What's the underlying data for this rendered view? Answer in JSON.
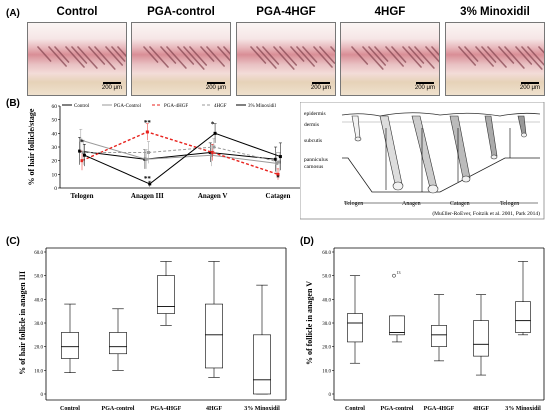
{
  "panelA": {
    "label": "(A)",
    "titles": [
      "Control",
      "PGA-control",
      "PGA-4HGF",
      "4HGF",
      "3% Minoxidil"
    ],
    "scale": "200 μm"
  },
  "panelB": {
    "label": "(B)"
  },
  "panelC": {
    "label": "(C)"
  },
  "panelD": {
    "label": "(D)"
  },
  "diagram": {
    "layers": [
      "epidermis",
      "dermis",
      "subcutis",
      "panniculus\ncarnosus"
    ],
    "phases": [
      "Telogen",
      "Anagen",
      "Catagen",
      "Telogen"
    ],
    "citation": "(Mu£ller-RoEver, Foitzik et al. 2001, Park 2014)"
  },
  "chart_data": [
    {
      "type": "line",
      "ylabel": "% of hair follicle/stage",
      "categories": [
        "Telogen",
        "Anagen III",
        "Anagen V",
        "Catagen"
      ],
      "ylim": [
        0,
        60
      ],
      "yticks": [
        0,
        10,
        20,
        30,
        40,
        50,
        60
      ],
      "legend_position": "top",
      "series": [
        {
          "name": "Control",
          "values": [
            27,
            21,
            26,
            21
          ],
          "color": "#000000",
          "dash": "solid",
          "marker": "square",
          "errors": [
            10,
            7,
            7,
            9
          ]
        },
        {
          "name": "PGA-Control",
          "values": [
            35,
            21,
            24,
            18
          ],
          "color": "#9a9a9a",
          "dash": "solid",
          "marker": "square",
          "errors": [
            8,
            7,
            8,
            8
          ]
        },
        {
          "name": "PGA-4HGF",
          "values": [
            20,
            41,
            26,
            10
          ],
          "color": "#e8231e",
          "dash": "dashed",
          "marker": "square",
          "errors": [
            7,
            6,
            6,
            4
          ]
        },
        {
          "name": "4HGF",
          "values": [
            26,
            26,
            30,
            19
          ],
          "color": "#9a9a9a",
          "dash": "dashed",
          "marker": "square",
          "errors": [
            9,
            8,
            6,
            7
          ]
        },
        {
          "name": "3% Minoxidil",
          "values": [
            24,
            3,
            40,
            23
          ],
          "color": "#000000",
          "dash": "solid",
          "marker": "square",
          "errors": [
            8,
            2,
            7,
            10
          ]
        }
      ],
      "annotations": [
        {
          "category": "Telogen",
          "text": "*"
        },
        {
          "category": "Anagen III",
          "text": "**"
        },
        {
          "category": "Anagen III",
          "text": "**"
        },
        {
          "category": "Anagen V",
          "text": "*"
        },
        {
          "category": "Catagen",
          "text": "*"
        }
      ]
    },
    {
      "type": "box",
      "ylabel": "% of hair follicle in anagen III",
      "categories": [
        "Control",
        "PGA-control",
        "PGA-4HGF",
        "4HGF",
        "3% Minoxidil"
      ],
      "ylim": [
        0,
        60
      ],
      "yticks": [
        0,
        10,
        20,
        30,
        40,
        50,
        60
      ],
      "ytick_labels": [
        "0",
        "10.0",
        "20.0",
        "30.0",
        "40.0",
        "50.0",
        "60.0"
      ],
      "boxes": [
        {
          "min": 9,
          "q1": 15,
          "median": 20,
          "q3": 26,
          "max": 38
        },
        {
          "min": 10,
          "q1": 17,
          "median": 20,
          "q3": 26,
          "max": 36
        },
        {
          "min": 29,
          "q1": 34,
          "median": 37,
          "q3": 50,
          "max": 56
        },
        {
          "min": 7,
          "q1": 11,
          "median": 25,
          "q3": 38,
          "max": 56
        },
        {
          "min": 0,
          "q1": 0,
          "median": 6,
          "q3": 25,
          "max": 46
        }
      ]
    },
    {
      "type": "box",
      "ylabel": "% of follicle in anagen V",
      "categories": [
        "Control",
        "PGA-control",
        "PGA-4HGF",
        "4HGF",
        "3% Minoxidil"
      ],
      "ylim": [
        0,
        60
      ],
      "yticks": [
        0,
        10,
        20,
        30,
        40,
        50,
        60
      ],
      "ytick_labels": [
        "0",
        "10.0",
        "20.0",
        "30.0",
        "40.0",
        "50.0",
        "60.0"
      ],
      "boxes": [
        {
          "min": 13,
          "q1": 22,
          "median": 30,
          "q3": 34,
          "max": 50
        },
        {
          "min": 22,
          "q1": 25,
          "median": 26,
          "q3": 33,
          "max": 33
        },
        {
          "min": 14,
          "q1": 20,
          "median": 25,
          "q3": 29,
          "max": 42
        },
        {
          "min": 8,
          "q1": 16,
          "median": 21,
          "q3": 31,
          "max": 42
        },
        {
          "min": 25,
          "q1": 26,
          "median": 31,
          "q3": 39,
          "max": 56
        }
      ],
      "outliers": [
        {
          "category": "PGA-control",
          "value": 50,
          "label": "13"
        }
      ]
    }
  ]
}
